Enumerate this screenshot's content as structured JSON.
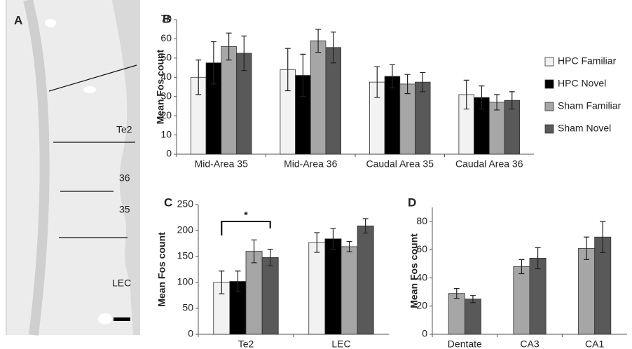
{
  "panel_a": {
    "label": "A",
    "regions": [
      "Te2",
      "36",
      "35",
      "LEC"
    ]
  },
  "chart_data": [
    {
      "type": "bar",
      "panel_label": "B",
      "y_label": "Mean Fos count",
      "categories": [
        "Mid-Area 35",
        "Mid-Area 36",
        "Caudal Area 35",
        "Caudal Area 36"
      ],
      "series": [
        {
          "name": "HPC Familiar",
          "color": "#f2f2f2",
          "values": [
            40,
            44,
            37.5,
            31
          ],
          "errors": [
            9,
            11,
            8,
            7.5
          ]
        },
        {
          "name": "HPC Novel",
          "color": "#000000",
          "values": [
            47.5,
            41,
            40.5,
            29.5
          ],
          "errors": [
            11,
            11,
            6,
            6
          ]
        },
        {
          "name": "Sham Familiar",
          "color": "#a6a6a6",
          "values": [
            56,
            59,
            36.5,
            27
          ],
          "errors": [
            7,
            6,
            5,
            4
          ]
        },
        {
          "name": "Sham Novel",
          "color": "#595959",
          "values": [
            52.5,
            55.5,
            37.5,
            28
          ],
          "errors": [
            9,
            8,
            5,
            4.5
          ]
        }
      ],
      "ylim": [
        0,
        70
      ],
      "yticks": [
        0,
        10,
        20,
        30,
        40,
        50,
        60,
        70
      ],
      "legend": "right",
      "grid": false
    },
    {
      "type": "bar",
      "panel_label": "C",
      "y_label": "Mean Fos count",
      "categories": [
        "Te2",
        "LEC"
      ],
      "series": [
        {
          "color": "#f2f2f2",
          "values": [
            100,
            177
          ],
          "errors": [
            22,
            19
          ]
        },
        {
          "color": "#000000",
          "values": [
            102,
            184
          ],
          "errors": [
            20,
            20
          ]
        },
        {
          "color": "#a6a6a6",
          "values": [
            160,
            169
          ],
          "errors": [
            22,
            10
          ]
        },
        {
          "color": "#595959",
          "values": [
            148,
            209
          ],
          "errors": [
            16,
            14
          ]
        }
      ],
      "annotation": "*",
      "ylim": [
        0,
        250
      ],
      "yticks": [
        0,
        50,
        100,
        150,
        200,
        250
      ],
      "grid": false
    },
    {
      "type": "bar",
      "panel_label": "D",
      "y_label": "Mean Fos count",
      "categories": [
        "Dentate",
        "CA3",
        "CA1"
      ],
      "series": [
        {
          "color": "#a6a6a6",
          "values": [
            29,
            48,
            61
          ],
          "errors": [
            3.5,
            5,
            8
          ]
        },
        {
          "color": "#595959",
          "values": [
            25,
            54,
            69
          ],
          "errors": [
            2.5,
            7.5,
            11
          ]
        }
      ],
      "ylim": [
        0,
        90
      ],
      "yticks": [
        0,
        20,
        40,
        60,
        80
      ],
      "grid": false
    }
  ]
}
